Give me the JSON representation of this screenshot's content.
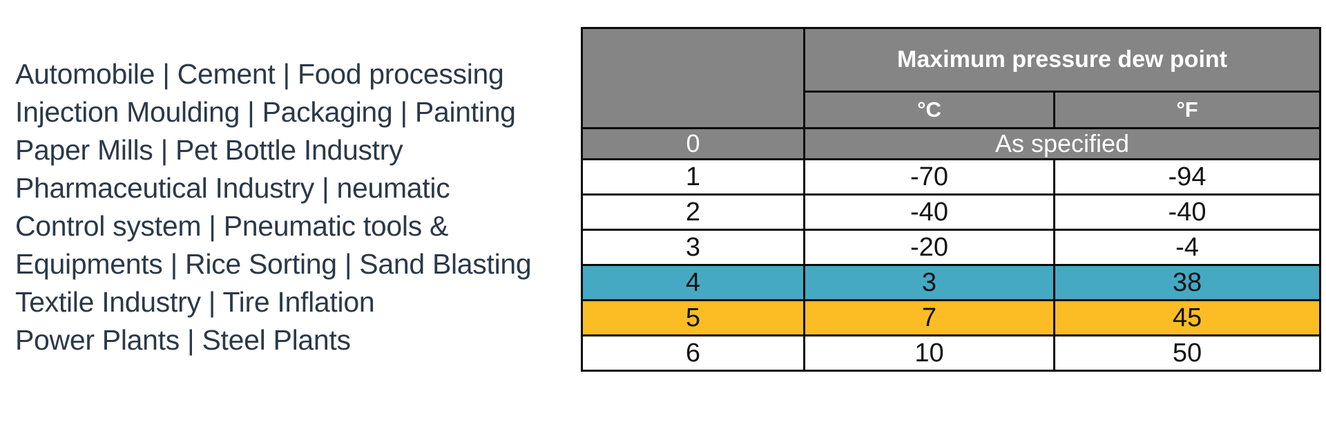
{
  "industries": {
    "lines": [
      "Automobile | Cement | Food processing",
      "Injection Moulding | Packaging | Painting",
      "Paper Mills | Pet Bottle Industry",
      "Pharmaceutical Industry | neumatic",
      "Control system | Pneumatic tools &",
      "Equipments | Rice Sorting | Sand Blasting",
      "Textile Industry | Tire Inflation",
      "Power Plants | Steel Plants"
    ],
    "text_color": "#2b3948"
  },
  "table": {
    "header": {
      "title": "Maximum pressure dew point",
      "unit_c": "°C",
      "unit_f": "°F"
    },
    "rows": [
      {
        "class_no": "0",
        "merged_value": "As specified"
      },
      {
        "class_no": "1",
        "c": "-70",
        "f": "-94"
      },
      {
        "class_no": "2",
        "c": "-40",
        "f": "-40"
      },
      {
        "class_no": "3",
        "c": "-20",
        "f": "-4"
      },
      {
        "class_no": "4",
        "c": "3",
        "f": "38"
      },
      {
        "class_no": "5",
        "c": "7",
        "f": "45"
      },
      {
        "class_no": "6",
        "c": "10",
        "f": "50"
      }
    ],
    "colors": {
      "header_bg": "#858585",
      "header_text": "#ffffff",
      "border": "#0a0a0a",
      "highlight_teal": "#46a9c4",
      "highlight_yellow": "#fbbd23"
    }
  }
}
